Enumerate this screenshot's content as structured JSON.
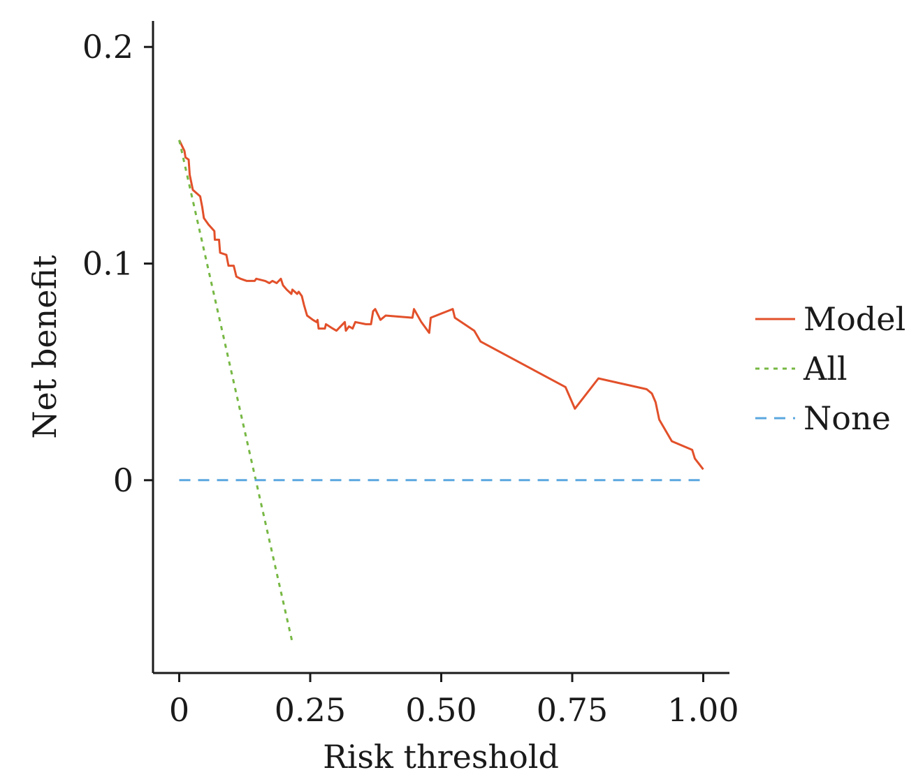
{
  "chart_data": {
    "type": "line",
    "title": "",
    "xlabel": "Risk threshold",
    "ylabel": "Net benefit",
    "xlim": [
      -0.05,
      1.05
    ],
    "ylim": [
      -0.089,
      0.212
    ],
    "xticks": [
      {
        "value": 0,
        "label": "0"
      },
      {
        "value": 0.25,
        "label": "0.25"
      },
      {
        "value": 0.5,
        "label": "0.50"
      },
      {
        "value": 0.75,
        "label": "0.75"
      },
      {
        "value": 1.0,
        "label": "1.00"
      }
    ],
    "yticks": [
      {
        "value": 0,
        "label": "0"
      },
      {
        "value": 0.1,
        "label": "0.1"
      },
      {
        "value": 0.2,
        "label": "0.2"
      }
    ],
    "legend_position": "right",
    "series": [
      {
        "name": "Model",
        "color": "#e2502a",
        "style": "solid",
        "points": [
          [
            0.0,
            0.157
          ],
          [
            0.01,
            0.152
          ],
          [
            0.012,
            0.149
          ],
          [
            0.018,
            0.148
          ],
          [
            0.02,
            0.141
          ],
          [
            0.026,
            0.134
          ],
          [
            0.04,
            0.131
          ],
          [
            0.044,
            0.126
          ],
          [
            0.047,
            0.121
          ],
          [
            0.056,
            0.118
          ],
          [
            0.067,
            0.115
          ],
          [
            0.068,
            0.111
          ],
          [
            0.076,
            0.111
          ],
          [
            0.078,
            0.105
          ],
          [
            0.09,
            0.104
          ],
          [
            0.094,
            0.099
          ],
          [
            0.104,
            0.099
          ],
          [
            0.109,
            0.094
          ],
          [
            0.117,
            0.093
          ],
          [
            0.129,
            0.092
          ],
          [
            0.144,
            0.092
          ],
          [
            0.147,
            0.093
          ],
          [
            0.164,
            0.092
          ],
          [
            0.172,
            0.091
          ],
          [
            0.178,
            0.092
          ],
          [
            0.186,
            0.091
          ],
          [
            0.194,
            0.093
          ],
          [
            0.198,
            0.09
          ],
          [
            0.205,
            0.088
          ],
          [
            0.214,
            0.086
          ],
          [
            0.216,
            0.088
          ],
          [
            0.225,
            0.086
          ],
          [
            0.228,
            0.087
          ],
          [
            0.234,
            0.085
          ],
          [
            0.238,
            0.081
          ],
          [
            0.244,
            0.076
          ],
          [
            0.255,
            0.074
          ],
          [
            0.262,
            0.073
          ],
          [
            0.264,
            0.074
          ],
          [
            0.266,
            0.07
          ],
          [
            0.278,
            0.07
          ],
          [
            0.28,
            0.072
          ],
          [
            0.293,
            0.07
          ],
          [
            0.3,
            0.069
          ],
          [
            0.316,
            0.073
          ],
          [
            0.318,
            0.069
          ],
          [
            0.324,
            0.071
          ],
          [
            0.331,
            0.07
          ],
          [
            0.336,
            0.073
          ],
          [
            0.356,
            0.072
          ],
          [
            0.366,
            0.072
          ],
          [
            0.37,
            0.078
          ],
          [
            0.374,
            0.079
          ],
          [
            0.384,
            0.074
          ],
          [
            0.394,
            0.076
          ],
          [
            0.445,
            0.075
          ],
          [
            0.448,
            0.079
          ],
          [
            0.462,
            0.073
          ],
          [
            0.477,
            0.068
          ],
          [
            0.48,
            0.075
          ],
          [
            0.522,
            0.079
          ],
          [
            0.526,
            0.075
          ],
          [
            0.563,
            0.069
          ],
          [
            0.575,
            0.064
          ],
          [
            0.737,
            0.043
          ],
          [
            0.755,
            0.033
          ],
          [
            0.8,
            0.047
          ],
          [
            0.892,
            0.042
          ],
          [
            0.902,
            0.04
          ],
          [
            0.909,
            0.036
          ],
          [
            0.916,
            0.028
          ],
          [
            0.94,
            0.018
          ],
          [
            0.979,
            0.014
          ],
          [
            0.984,
            0.01
          ],
          [
            1.0,
            0.005
          ]
        ]
      },
      {
        "name": "All",
        "color": "#77b844",
        "style": "dotted",
        "points": [
          [
            0.0,
            0.157
          ],
          [
            0.216,
            -0.075
          ]
        ]
      },
      {
        "name": "None",
        "color": "#5aa7df",
        "style": "dashed",
        "points": [
          [
            0.0,
            0.0
          ],
          [
            1.0,
            0.0
          ]
        ]
      }
    ]
  }
}
